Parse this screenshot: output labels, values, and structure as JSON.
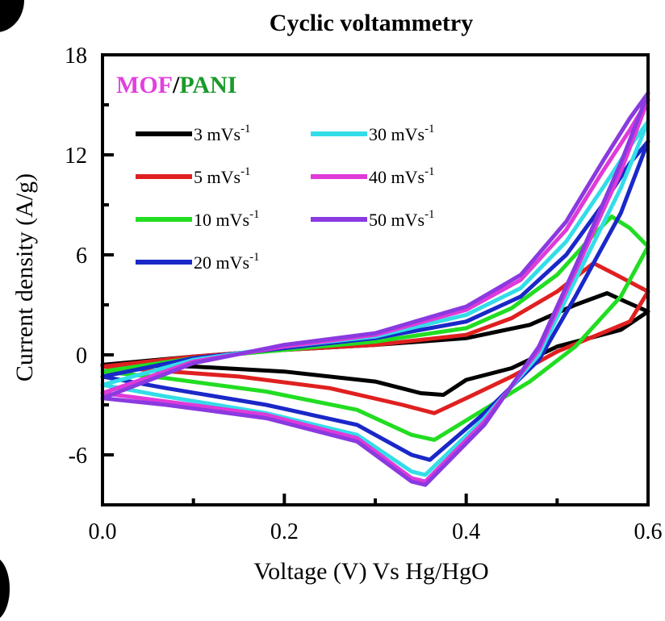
{
  "chart_data": {
    "type": "line",
    "title": "Cyclic voltammetry",
    "xlabel": "Voltage (V) Vs Hg/HgO",
    "ylabel": "Current density (A/g)",
    "xlim": [
      0.0,
      0.6
    ],
    "ylim": [
      -9.0,
      18.0
    ],
    "xticks": [
      {
        "v": 0.0,
        "label": "0.0"
      },
      {
        "v": 0.2,
        "label": "0.2"
      },
      {
        "v": 0.4,
        "label": "0.4"
      },
      {
        "v": 0.6,
        "label": "0.6"
      }
    ],
    "xminor": [
      0.1,
      0.3,
      0.5
    ],
    "yticks": [
      {
        "v": -6,
        "label": "-6"
      },
      {
        "v": 0,
        "label": "0"
      },
      {
        "v": 6,
        "label": "6"
      },
      {
        "v": 12,
        "label": "12"
      },
      {
        "v": 18,
        "label": "18"
      }
    ],
    "yminor": [
      -3,
      3,
      9,
      15
    ],
    "grid": false,
    "legend_position": "top-left",
    "sample": {
      "part1": "MOF",
      "part1_color": "#e040e0",
      "sep": "/",
      "part2": "PANI",
      "part2_color": "#1a9a2a"
    },
    "series": [
      {
        "name": "3 mVs",
        "superscript": "-1",
        "color": "#000000",
        "anodic": [
          [
            0.0,
            -0.6
          ],
          [
            0.1,
            -0.1
          ],
          [
            0.2,
            0.3
          ],
          [
            0.3,
            0.6
          ],
          [
            0.4,
            1.0
          ],
          [
            0.47,
            1.8
          ],
          [
            0.52,
            3.0
          ],
          [
            0.555,
            3.7
          ],
          [
            0.575,
            3.2
          ],
          [
            0.6,
            2.6
          ]
        ],
        "cathodic": [
          [
            0.6,
            2.6
          ],
          [
            0.57,
            1.5
          ],
          [
            0.5,
            0.5
          ],
          [
            0.45,
            -0.8
          ],
          [
            0.4,
            -1.5
          ],
          [
            0.375,
            -2.4
          ],
          [
            0.35,
            -2.3
          ],
          [
            0.3,
            -1.6
          ],
          [
            0.2,
            -1.0
          ],
          [
            0.1,
            -0.7
          ],
          [
            0.0,
            -0.6
          ]
        ]
      },
      {
        "name": "5 mVs",
        "superscript": "-1",
        "color": "#e02020",
        "anodic": [
          [
            0.0,
            -0.7
          ],
          [
            0.1,
            -0.1
          ],
          [
            0.2,
            0.3
          ],
          [
            0.3,
            0.6
          ],
          [
            0.4,
            1.2
          ],
          [
            0.45,
            2.2
          ],
          [
            0.5,
            3.8
          ],
          [
            0.54,
            5.5
          ],
          [
            0.565,
            4.8
          ],
          [
            0.6,
            3.8
          ]
        ],
        "cathodic": [
          [
            0.6,
            3.8
          ],
          [
            0.58,
            2.0
          ],
          [
            0.5,
            0.2
          ],
          [
            0.45,
            -1.3
          ],
          [
            0.4,
            -2.6
          ],
          [
            0.365,
            -3.5
          ],
          [
            0.33,
            -3.0
          ],
          [
            0.25,
            -2.0
          ],
          [
            0.15,
            -1.3
          ],
          [
            0.05,
            -0.9
          ],
          [
            0.0,
            -0.7
          ]
        ]
      },
      {
        "name": "10 mVs",
        "superscript": "-1",
        "color": "#22dd22",
        "anodic": [
          [
            0.0,
            -1.0
          ],
          [
            0.1,
            -0.2
          ],
          [
            0.2,
            0.3
          ],
          [
            0.3,
            0.8
          ],
          [
            0.4,
            1.6
          ],
          [
            0.45,
            2.8
          ],
          [
            0.5,
            4.8
          ],
          [
            0.54,
            7.2
          ],
          [
            0.56,
            8.3
          ],
          [
            0.58,
            7.6
          ],
          [
            0.6,
            6.5
          ]
        ],
        "cathodic": [
          [
            0.6,
            6.5
          ],
          [
            0.57,
            3.5
          ],
          [
            0.52,
            0.5
          ],
          [
            0.47,
            -1.6
          ],
          [
            0.41,
            -3.6
          ],
          [
            0.365,
            -5.1
          ],
          [
            0.34,
            -4.8
          ],
          [
            0.28,
            -3.3
          ],
          [
            0.18,
            -2.2
          ],
          [
            0.07,
            -1.4
          ],
          [
            0.0,
            -1.0
          ]
        ]
      },
      {
        "name": "20 mVs",
        "superscript": "-1",
        "color": "#1a28c8",
        "anodic": [
          [
            0.0,
            -1.3
          ],
          [
            0.1,
            -0.2
          ],
          [
            0.2,
            0.4
          ],
          [
            0.3,
            1.0
          ],
          [
            0.4,
            2.0
          ],
          [
            0.46,
            3.5
          ],
          [
            0.51,
            6.0
          ],
          [
            0.55,
            9.0
          ],
          [
            0.58,
            11.5
          ],
          [
            0.6,
            12.8
          ]
        ],
        "cathodic": [
          [
            0.6,
            12.8
          ],
          [
            0.57,
            8.5
          ],
          [
            0.52,
            3.5
          ],
          [
            0.48,
            -0.3
          ],
          [
            0.42,
            -3.5
          ],
          [
            0.36,
            -6.3
          ],
          [
            0.34,
            -6.0
          ],
          [
            0.28,
            -4.2
          ],
          [
            0.18,
            -3.0
          ],
          [
            0.07,
            -2.0
          ],
          [
            0.0,
            -1.3
          ]
        ]
      },
      {
        "name": "30 mVs",
        "superscript": "-1",
        "color": "#33dde8",
        "anodic": [
          [
            0.0,
            -1.8
          ],
          [
            0.1,
            -0.3
          ],
          [
            0.2,
            0.5
          ],
          [
            0.3,
            1.1
          ],
          [
            0.4,
            2.4
          ],
          [
            0.46,
            4.0
          ],
          [
            0.51,
            6.8
          ],
          [
            0.55,
            10.0
          ],
          [
            0.58,
            12.5
          ],
          [
            0.6,
            14.0
          ]
        ],
        "cathodic": [
          [
            0.6,
            14.0
          ],
          [
            0.57,
            10.0
          ],
          [
            0.52,
            4.5
          ],
          [
            0.48,
            0.0
          ],
          [
            0.42,
            -3.8
          ],
          [
            0.355,
            -7.2
          ],
          [
            0.34,
            -7.0
          ],
          [
            0.28,
            -4.8
          ],
          [
            0.18,
            -3.5
          ],
          [
            0.07,
            -2.5
          ],
          [
            0.0,
            -1.8
          ]
        ]
      },
      {
        "name": "40 mVs",
        "superscript": "-1",
        "color": "#e03ad8",
        "anodic": [
          [
            0.0,
            -2.3
          ],
          [
            0.1,
            -0.4
          ],
          [
            0.2,
            0.5
          ],
          [
            0.3,
            1.2
          ],
          [
            0.4,
            2.7
          ],
          [
            0.46,
            4.5
          ],
          [
            0.51,
            7.5
          ],
          [
            0.55,
            11.0
          ],
          [
            0.58,
            13.5
          ],
          [
            0.6,
            15.3
          ]
        ],
        "cathodic": [
          [
            0.6,
            15.3
          ],
          [
            0.57,
            11.0
          ],
          [
            0.52,
            5.0
          ],
          [
            0.48,
            0.3
          ],
          [
            0.42,
            -4.0
          ],
          [
            0.355,
            -7.6
          ],
          [
            0.34,
            -7.4
          ],
          [
            0.28,
            -5.0
          ],
          [
            0.18,
            -3.6
          ],
          [
            0.07,
            -2.8
          ],
          [
            0.0,
            -2.3
          ]
        ]
      },
      {
        "name": "50 mVs",
        "superscript": "-1",
        "color": "#8a3ae0",
        "anodic": [
          [
            0.0,
            -2.6
          ],
          [
            0.1,
            -0.5
          ],
          [
            0.2,
            0.6
          ],
          [
            0.3,
            1.3
          ],
          [
            0.4,
            2.9
          ],
          [
            0.46,
            4.8
          ],
          [
            0.51,
            8.0
          ],
          [
            0.55,
            11.6
          ],
          [
            0.58,
            14.2
          ],
          [
            0.6,
            15.7
          ]
        ],
        "cathodic": [
          [
            0.6,
            15.7
          ],
          [
            0.57,
            11.5
          ],
          [
            0.52,
            5.3
          ],
          [
            0.48,
            0.5
          ],
          [
            0.42,
            -4.2
          ],
          [
            0.355,
            -7.8
          ],
          [
            0.34,
            -7.6
          ],
          [
            0.28,
            -5.2
          ],
          [
            0.18,
            -3.8
          ],
          [
            0.07,
            -3.0
          ],
          [
            0.0,
            -2.6
          ]
        ]
      }
    ]
  }
}
